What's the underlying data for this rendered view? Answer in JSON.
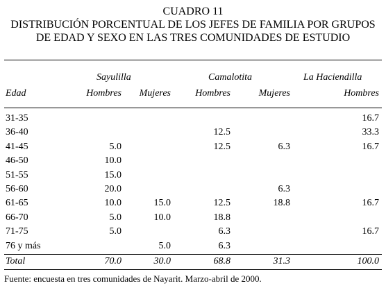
{
  "title": {
    "line1": "CUADRO 11",
    "line2": "DISTRIBUCIÓN PORCENTUAL DE LOS JEFES DE FAMILIA POR GRUPOS",
    "line3": "DE EDAD Y SEXO EN LAS TRES COMUNIDADES DE ESTUDIO"
  },
  "header": {
    "groups": [
      "Sayulilla",
      "Camalotita",
      "La Haciendilla"
    ],
    "edad_label": "Edad",
    "subcols": [
      "Hombres",
      "Mujeres",
      "Hombres",
      "Mujeres",
      "Hombres"
    ]
  },
  "rows": [
    [
      "31-35",
      "",
      "",
      "",
      "",
      "16.7"
    ],
    [
      "36-40",
      "",
      "",
      "12.5",
      "",
      "33.3"
    ],
    [
      "41-45",
      "5.0",
      "",
      "12.5",
      "6.3",
      "16.7"
    ],
    [
      "46-50",
      "10.0",
      "",
      "",
      "",
      ""
    ],
    [
      "51-55",
      "15.0",
      "",
      "",
      "",
      ""
    ],
    [
      "56-60",
      "20.0",
      "",
      "",
      "6.3",
      ""
    ],
    [
      "61-65",
      "10.0",
      "15.0",
      "12.5",
      "18.8",
      "16.7"
    ],
    [
      "66-70",
      "5.0",
      "10.0",
      "18.8",
      "",
      ""
    ],
    [
      "71-75",
      "5.0",
      "",
      "6.3",
      "",
      "16.7"
    ],
    [
      "76 y más",
      "",
      "5.0",
      "6.3",
      "",
      ""
    ]
  ],
  "total": [
    "Total",
    "70.0",
    "30.0",
    "68.8",
    "31.3",
    "100.0"
  ],
  "source": "Fuente: encuesta en tres comunidades de Nayarit. Marzo-abril de 2000."
}
